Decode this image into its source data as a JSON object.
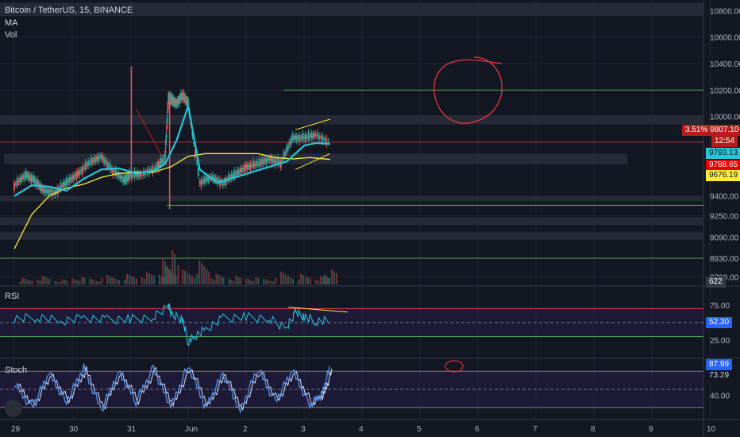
{
  "header": {
    "symbol_line": "Bitcoin / TetherUS, 15, BINANCE",
    "ma_label": "MA",
    "vol_label": "Vol"
  },
  "rsi_panel": {
    "label": "RSI"
  },
  "stoch_panel": {
    "label": "Stoch"
  },
  "tags": {
    "change_pct": "3.51%",
    "last_price": "9807.10",
    "countdown": "12:54",
    "ma_fast": "9793.13",
    "ma_red": "9788.65",
    "ma_slow": "9676.19",
    "volume": "622",
    "rsi_value": "52.30",
    "stoch_k": "87.99",
    "stoch_d": "73.29"
  },
  "colors": {
    "background": "#131722",
    "ma_fast": "#26c6da",
    "ma_slow": "#ffeb3b",
    "up": "#26a69a",
    "down": "#ef5350",
    "support_line": "#4caf50",
    "resistance_line": "#f23645",
    "annotation": "#f23645"
  },
  "chart_data": {
    "type": "candlestick",
    "title": "Bitcoin / TetherUS, 15, BINANCE",
    "x_ticks": [
      "29",
      "30",
      "31",
      "Jun",
      "2",
      "3",
      "4",
      "5",
      "6",
      "7",
      "8",
      "9",
      "10"
    ],
    "price_axis": {
      "ticks": [
        10800,
        10600,
        10400,
        10200,
        10000,
        9400,
        9250,
        9090,
        8930,
        8790
      ],
      "ylim": [
        8720,
        10880
      ]
    },
    "price_path": {
      "x": [
        0,
        0.2,
        0.35,
        0.5,
        0.7,
        0.9,
        1.1,
        1.3,
        1.5,
        1.7,
        1.9,
        2.0,
        2.2,
        2.45,
        2.6,
        2.66,
        2.72,
        2.8,
        2.9,
        3.0,
        3.2,
        3.4,
        3.6,
        3.8,
        4.0,
        4.2,
        4.4,
        4.6,
        4.8,
        5.0,
        5.2,
        5.45
      ],
      "y": [
        9480,
        9560,
        9520,
        9440,
        9430,
        9500,
        9570,
        9650,
        9700,
        9590,
        9520,
        9560,
        9560,
        9620,
        9680,
        10150,
        10120,
        10100,
        10160,
        10100,
        9500,
        9540,
        9500,
        9560,
        9620,
        9640,
        9680,
        9650,
        9840,
        9840,
        9860,
        9807
      ]
    },
    "ma_fast": {
      "x": [
        0,
        0.3,
        0.6,
        0.9,
        1.2,
        1.5,
        1.8,
        2.1,
        2.4,
        2.6,
        2.8,
        3.0,
        3.2,
        3.5,
        3.8,
        4.1,
        4.4,
        4.7,
        5.0,
        5.2,
        5.45
      ],
      "y": [
        9400,
        9480,
        9470,
        9440,
        9530,
        9600,
        9610,
        9570,
        9590,
        9640,
        9820,
        10080,
        9600,
        9500,
        9540,
        9580,
        9620,
        9660,
        9780,
        9800,
        9793
      ]
    },
    "ma_slow": {
      "x": [
        0,
        0.3,
        0.6,
        0.9,
        1.2,
        1.5,
        1.8,
        2.1,
        2.4,
        2.7,
        3.0,
        3.3,
        3.6,
        3.9,
        4.2,
        4.5,
        4.8,
        5.1,
        5.45
      ],
      "y": [
        9000,
        9260,
        9400,
        9460,
        9490,
        9540,
        9570,
        9580,
        9580,
        9620,
        9700,
        9720,
        9720,
        9720,
        9720,
        9690,
        9680,
        9690,
        9676
      ]
    },
    "levels": {
      "support_green": [
        10200,
        9330,
        8930
      ],
      "resistance_red": [
        9807
      ]
    },
    "zones": [
      {
        "from": 10010,
        "to": 9940
      },
      {
        "from": 9720,
        "to": 9640
      },
      {
        "from": 9400,
        "to": 9360
      },
      {
        "from": 9240,
        "to": 9180
      },
      {
        "from": 9130,
        "to": 9070
      },
      {
        "from": 10860,
        "to": 10760
      }
    ],
    "volume": {
      "x": [
        0.2,
        0.5,
        0.8,
        1.1,
        1.4,
        1.7,
        2.0,
        2.3,
        2.6,
        2.66,
        2.72,
        3.0,
        3.25,
        3.5,
        3.8,
        4.1,
        4.4,
        4.7,
        5.0,
        5.3,
        5.45
      ],
      "values": [
        0.15,
        0.2,
        0.12,
        0.18,
        0.15,
        0.22,
        0.25,
        0.3,
        0.35,
        0.8,
        0.45,
        0.35,
        0.55,
        0.25,
        0.2,
        0.18,
        0.15,
        0.3,
        0.25,
        0.2,
        0.35
      ]
    },
    "rsi": {
      "levels": [
        70,
        50,
        30
      ],
      "ticks": [
        75,
        52.3,
        25
      ],
      "x": [
        0,
        0.4,
        0.8,
        1.2,
        1.6,
        2.0,
        2.4,
        2.66,
        2.72,
        2.9,
        3.0,
        3.1,
        3.3,
        3.6,
        4.0,
        4.4,
        4.7,
        4.85,
        5.0,
        5.2,
        5.45
      ],
      "values": [
        55,
        58,
        52,
        57,
        54,
        55,
        57,
        75,
        60,
        55,
        22,
        30,
        40,
        56,
        58,
        55,
        42,
        65,
        58,
        52,
        52.3
      ]
    },
    "stoch": {
      "levels": [
        80,
        50,
        20
      ],
      "ticks": [
        87.99,
        73.29,
        40.0
      ],
      "x": [
        0,
        0.3,
        0.6,
        0.9,
        1.2,
        1.5,
        1.8,
        2.1,
        2.4,
        2.7,
        3.0,
        3.3,
        3.6,
        3.9,
        4.2,
        4.5,
        4.8,
        5.1,
        5.3,
        5.45
      ],
      "values": [
        60,
        20,
        75,
        30,
        85,
        15,
        80,
        30,
        85,
        20,
        90,
        20,
        75,
        15,
        85,
        30,
        80,
        25,
        40,
        88
      ]
    }
  }
}
